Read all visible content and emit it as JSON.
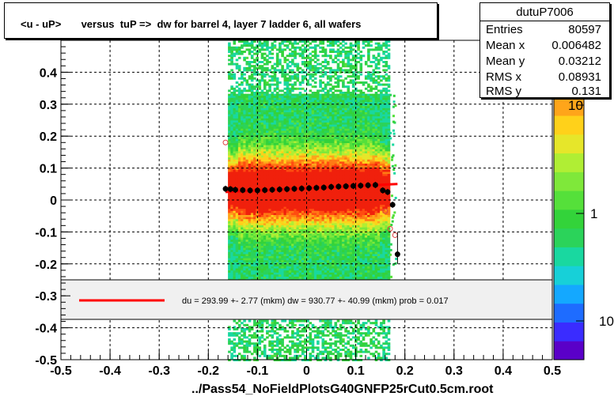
{
  "title": "<u - uP>       versus  tuP =>  dw for barrel 4, layer 7 ladder 6, all wafers",
  "footer": "../Pass54_NoFieldPlotsG40GNFP25rCut0.5cm.root",
  "stats": {
    "name": "dutuP7006",
    "rows": [
      {
        "key": "Entries",
        "value": "80597"
      },
      {
        "key": "Mean x",
        "value": "0.006482"
      },
      {
        "key": "Mean y",
        "value": "0.03212"
      },
      {
        "key": "RMS x",
        "value": "0.08931"
      },
      {
        "key": "RMS y",
        "value": "0.131"
      }
    ]
  },
  "legend": {
    "text": "du =  293.99 +-  2.77 (mkm) dw =  930.77 +- 40.99 (mkm) prob = 0.017",
    "line_color": "#ff0000"
  },
  "colorbar": {
    "labels": [
      "10",
      "1",
      "10"
    ]
  },
  "chart_data": {
    "type": "heatmap",
    "xlim": [
      -0.5,
      0.5
    ],
    "ylim": [
      -0.5,
      0.5
    ],
    "x_ticks": [
      "-0.5",
      "-0.4",
      "-0.3",
      "-0.2",
      "-0.1",
      "0",
      "0.1",
      "0.2",
      "0.3",
      "0.4",
      "0.5"
    ],
    "y_ticks": [
      "-0.5",
      "-0.4",
      "-0.3",
      "-0.2",
      "-0.1",
      "0",
      "0.1",
      "0.2",
      "0.3",
      "0.4"
    ],
    "grid": true,
    "occupancy": {
      "x_range": [
        -0.16,
        0.165
      ],
      "y_center": 0.035
    },
    "profile_points": {
      "x": [
        -0.165,
        -0.155,
        -0.145,
        -0.13,
        -0.115,
        -0.1,
        -0.085,
        -0.07,
        -0.055,
        -0.04,
        -0.025,
        -0.01,
        0.005,
        0.02,
        0.035,
        0.05,
        0.065,
        0.08,
        0.095,
        0.11,
        0.125,
        0.14,
        0.155,
        0.165,
        0.175,
        0.185
      ],
      "y": [
        0.035,
        0.034,
        0.032,
        0.031,
        0.03,
        0.03,
        0.031,
        0.032,
        0.033,
        0.034,
        0.035,
        0.036,
        0.037,
        0.038,
        0.039,
        0.041,
        0.042,
        0.043,
        0.044,
        0.045,
        0.046,
        0.047,
        0.03,
        0.025,
        -0.015,
        -0.17
      ]
    },
    "open_points": {
      "x": [
        -0.165,
        0.16,
        0.17,
        0.18
      ],
      "y": [
        0.18,
        -0.035,
        -0.09,
        -0.11
      ]
    },
    "fit_line": {
      "x": [
        -0.165,
        0.185
      ],
      "y": [
        0.025,
        0.05
      ]
    }
  }
}
